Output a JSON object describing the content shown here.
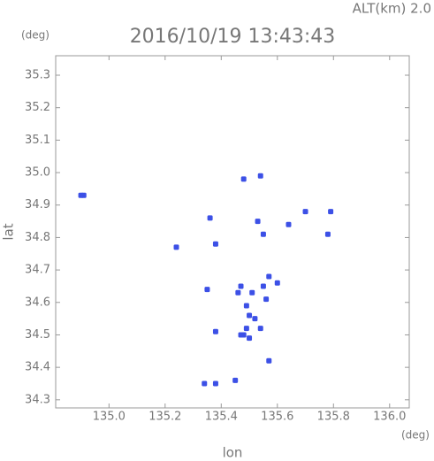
{
  "chart_data": {
    "type": "scatter",
    "title": "2016/10/19 13:43:43",
    "subtitle": "ALT(km) 2.0",
    "xlabel": "lon",
    "ylabel": "lat",
    "xunit": "(deg)",
    "yunit": "(deg)",
    "color": "#3c50e6",
    "x": [
      134.91,
      134.9,
      135.48,
      135.54,
      135.36,
      135.53,
      135.7,
      135.79,
      135.64,
      135.55,
      135.38,
      135.78,
      135.24,
      135.57,
      135.6,
      135.55,
      135.46,
      135.35,
      135.56,
      135.49,
      135.5,
      135.52,
      135.49,
      135.48,
      135.5,
      135.38,
      135.57,
      135.34,
      135.38,
      135.45,
      135.47,
      135.51,
      135.47,
      135.54
    ],
    "values": [
      34.93,
      34.93,
      34.98,
      34.99,
      34.86,
      34.85,
      34.88,
      34.88,
      34.84,
      34.81,
      34.78,
      34.81,
      34.77,
      34.68,
      34.66,
      34.65,
      34.63,
      34.64,
      34.61,
      34.59,
      34.56,
      34.55,
      34.52,
      34.5,
      34.49,
      34.51,
      34.42,
      34.35,
      34.35,
      34.36,
      34.65,
      34.63,
      34.5,
      34.52
    ],
    "xlim": [
      134.81,
      136.07
    ],
    "ylim": [
      34.275,
      35.36
    ],
    "xticks": [
      {
        "value": 135,
        "label": "135.0"
      },
      135.2,
      135.4,
      135.6,
      135.8,
      {
        "value": 136,
        "label": "136.0"
      }
    ],
    "yticks": [
      34.3,
      34.4,
      34.5,
      34.6,
      34.7,
      34.8,
      34.9,
      {
        "value": 35,
        "label": "35.0"
      },
      35.1,
      35.2,
      35.3
    ]
  }
}
